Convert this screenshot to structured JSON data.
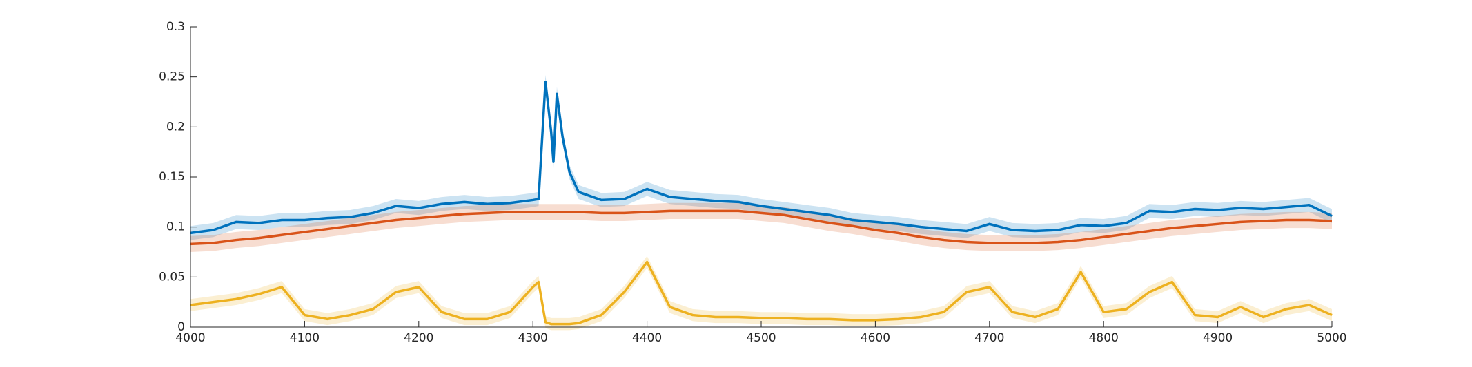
{
  "chart_data": {
    "type": "line",
    "x": [
      4000,
      4020,
      4040,
      4060,
      4080,
      4100,
      4120,
      4140,
      4160,
      4180,
      4200,
      4220,
      4240,
      4260,
      4280,
      4300,
      4305,
      4311,
      4316,
      4318,
      4321,
      4326,
      4332,
      4340,
      4360,
      4380,
      4400,
      4420,
      4440,
      4460,
      4480,
      4500,
      4520,
      4540,
      4560,
      4580,
      4600,
      4620,
      4640,
      4660,
      4680,
      4700,
      4720,
      4740,
      4760,
      4780,
      4800,
      4820,
      4840,
      4860,
      4880,
      4900,
      4920,
      4940,
      4960,
      4980,
      5000
    ],
    "series": [
      {
        "color": "#0072BD",
        "error": 0.007,
        "values": [
          0.094,
          0.097,
          0.105,
          0.104,
          0.107,
          0.107,
          0.109,
          0.11,
          0.114,
          0.121,
          0.119,
          0.123,
          0.125,
          0.123,
          0.124,
          0.127,
          0.128,
          0.245,
          0.195,
          0.165,
          0.233,
          0.19,
          0.155,
          0.135,
          0.127,
          0.128,
          0.138,
          0.13,
          0.128,
          0.126,
          0.125,
          0.121,
          0.118,
          0.115,
          0.112,
          0.107,
          0.105,
          0.103,
          0.1,
          0.098,
          0.096,
          0.103,
          0.097,
          0.096,
          0.097,
          0.102,
          0.101,
          0.104,
          0.116,
          0.115,
          0.118,
          0.117,
          0.119,
          0.118,
          0.12,
          0.122,
          0.111
        ]
      },
      {
        "color": "#D95319",
        "error": 0.008,
        "values": [
          0.083,
          0.084,
          0.087,
          0.089,
          0.092,
          0.095,
          0.098,
          0.101,
          0.104,
          0.107,
          0.109,
          0.111,
          0.113,
          0.114,
          0.115,
          0.115,
          0.115,
          0.115,
          0.115,
          0.115,
          0.115,
          0.115,
          0.115,
          0.115,
          0.114,
          0.114,
          0.115,
          0.116,
          0.116,
          0.116,
          0.116,
          0.114,
          0.112,
          0.108,
          0.104,
          0.101,
          0.097,
          0.094,
          0.09,
          0.087,
          0.085,
          0.084,
          0.084,
          0.084,
          0.085,
          0.087,
          0.09,
          0.093,
          0.096,
          0.099,
          0.101,
          0.103,
          0.105,
          0.106,
          0.107,
          0.107,
          0.106
        ]
      },
      {
        "color": "#EDB120",
        "error": 0.006,
        "values": [
          0.022,
          0.025,
          0.028,
          0.033,
          0.04,
          0.012,
          0.008,
          0.012,
          0.018,
          0.035,
          0.04,
          0.015,
          0.008,
          0.008,
          0.015,
          0.04,
          0.045,
          0.005,
          0.003,
          0.003,
          0.003,
          0.003,
          0.003,
          0.004,
          0.012,
          0.035,
          0.065,
          0.02,
          0.012,
          0.01,
          0.01,
          0.009,
          0.009,
          0.008,
          0.008,
          0.007,
          0.007,
          0.008,
          0.01,
          0.015,
          0.035,
          0.04,
          0.015,
          0.01,
          0.018,
          0.055,
          0.015,
          0.018,
          0.035,
          0.045,
          0.012,
          0.01,
          0.02,
          0.01,
          0.018,
          0.022,
          0.012
        ]
      }
    ],
    "xlim": [
      4000,
      5000
    ],
    "xticks": [
      4000,
      4100,
      4200,
      4300,
      4400,
      4500,
      4600,
      4700,
      4800,
      4900,
      5000
    ],
    "ylim": [
      0,
      0.3
    ],
    "yticks": [
      0,
      0.05,
      0.1,
      0.15,
      0.2,
      0.25,
      0.3
    ]
  }
}
